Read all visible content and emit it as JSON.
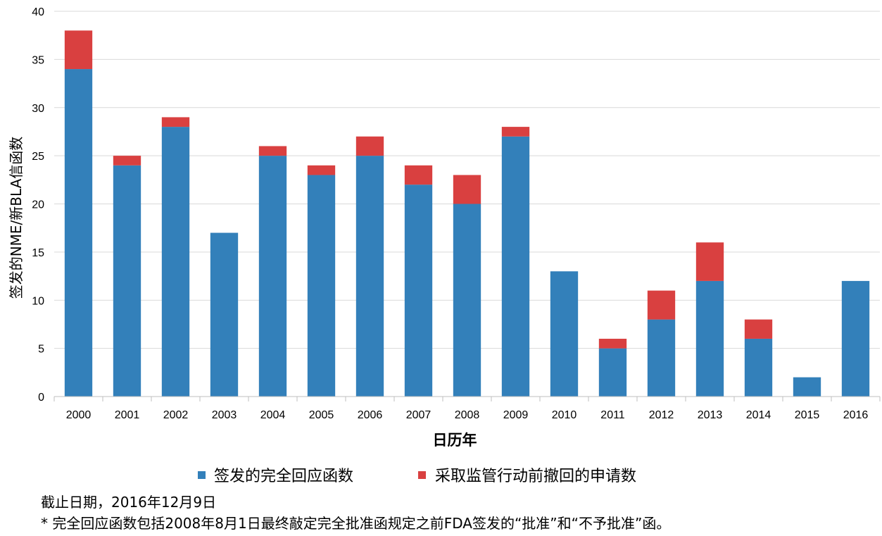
{
  "chart_data": {
    "type": "bar",
    "stacked": true,
    "categories": [
      "2000",
      "2001",
      "2002",
      "2003",
      "2004",
      "2005",
      "2006",
      "2007",
      "2008",
      "2009",
      "2010",
      "2011",
      "2012",
      "2013",
      "2014",
      "2015",
      "2016"
    ],
    "series": [
      {
        "name": "签发的完全回应函数",
        "color": "#3380BA",
        "values": [
          34,
          24,
          28,
          17,
          25,
          23,
          25,
          22,
          20,
          27,
          13,
          5,
          8,
          12,
          6,
          2,
          12
        ]
      },
      {
        "name": "采取监管行动前撤回的申请数",
        "color": "#D94040",
        "values": [
          4,
          1,
          1,
          0,
          1,
          1,
          2,
          2,
          3,
          1,
          0,
          1,
          3,
          4,
          2,
          0,
          0
        ]
      }
    ],
    "xlabel": "日历年",
    "ylabel": "签发的NME/新BLA信函数",
    "ylim": [
      0,
      40
    ],
    "yticks": [
      0,
      5,
      10,
      15,
      20,
      25,
      30,
      35,
      40
    ],
    "grid": true,
    "legend": "bottom"
  },
  "notes": {
    "cutoff": "截止日期，2016年12月9日",
    "footnote": "* 完全回应函数包括2008年8月1日最终敲定完全批准函规定之前FDA签发的“批准”和“不予批准”函。"
  }
}
